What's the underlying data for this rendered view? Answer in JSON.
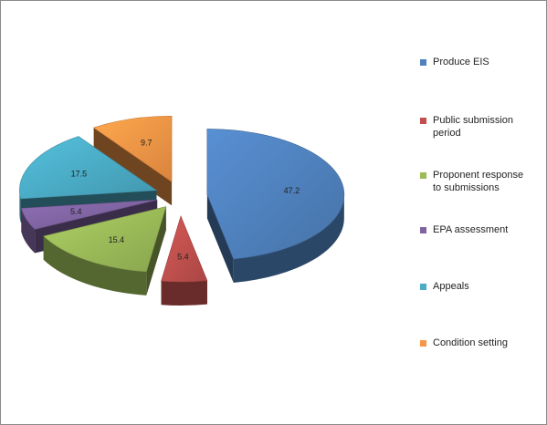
{
  "chart_data": {
    "type": "pie",
    "style": "3d-exploded",
    "legend_position": "right",
    "slices": [
      {
        "name": "Produce EIS",
        "value": 47.2,
        "label": "47.2",
        "color": "#4f81bd"
      },
      {
        "name": "Public submission\nperiod",
        "value": 5.4,
        "label": "5.4",
        "color": "#c0504d"
      },
      {
        "name": "Proponent response\nto submissions",
        "value": 15.4,
        "label": "15.4",
        "color": "#9bbb59"
      },
      {
        "name": "EPA assessment",
        "value": 5.4,
        "label": "5.4",
        "color": "#8064a2"
      },
      {
        "name": "Appeals",
        "value": 17.5,
        "label": "17.5",
        "color": "#4bacc6"
      },
      {
        "name": "Condition setting",
        "value": 9.7,
        "label": "9.7",
        "color": "#f79646"
      }
    ]
  }
}
